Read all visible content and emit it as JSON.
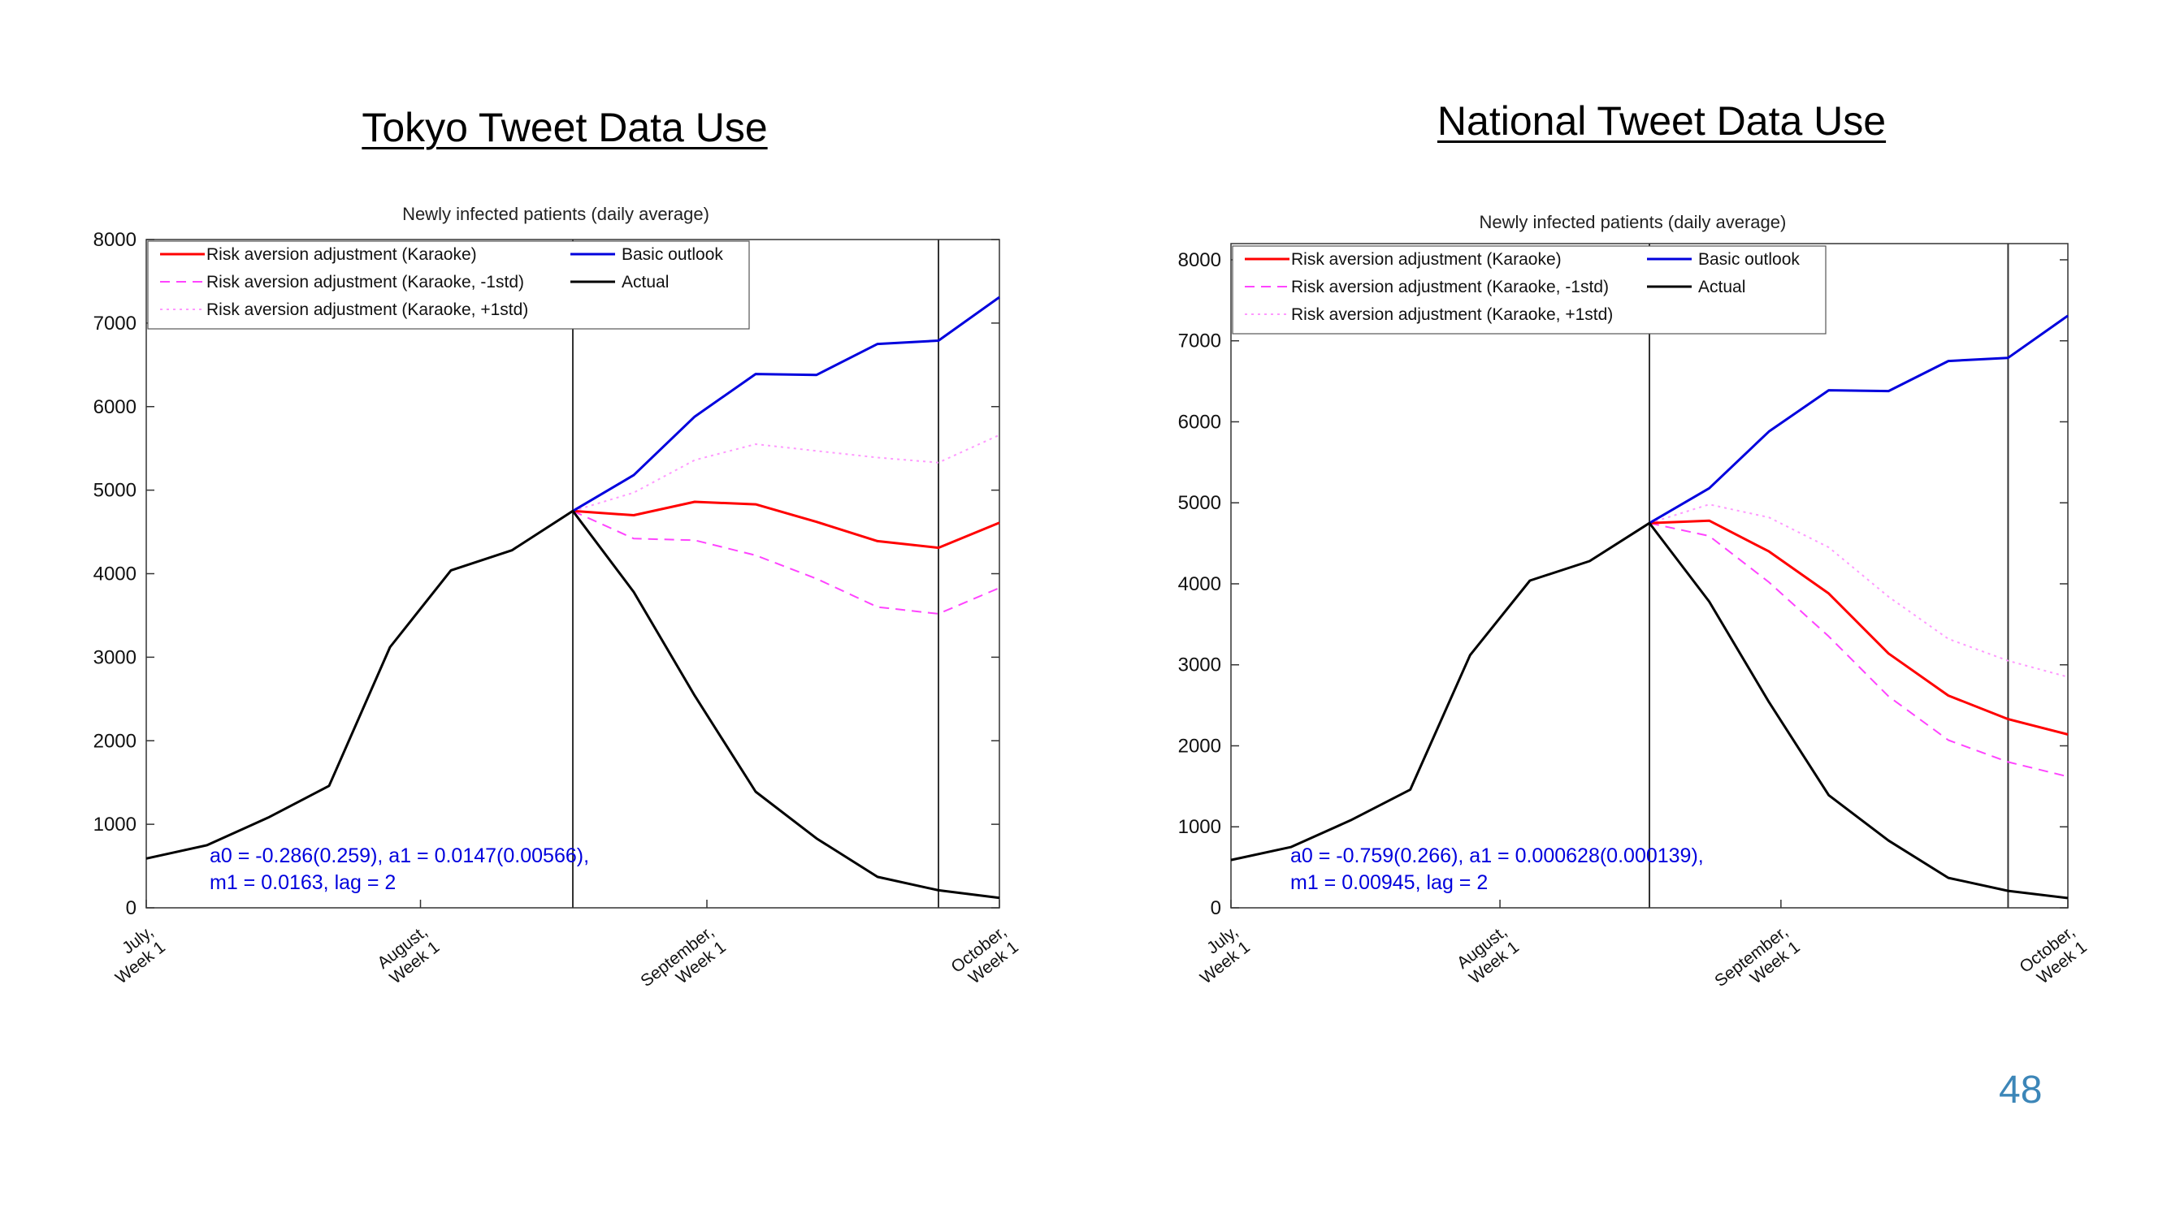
{
  "headings": {
    "left": "Tokyo Tweet Data Use",
    "right": "National Tweet Data Use"
  },
  "page_number": "48",
  "colors": {
    "risk_aversion": "#ff0000",
    "risk_minus": "#ff44ff",
    "risk_plus": "#ff99ff",
    "basic": "#0000dd",
    "actual": "#000000",
    "annotation": "#0000dd"
  },
  "chart_data": [
    {
      "type": "line",
      "title": "Newly infected patients (daily average)",
      "xlabel": "",
      "ylabel": "",
      "ylim": [
        0,
        8000
      ],
      "yticks": [
        0,
        1000,
        2000,
        3000,
        4000,
        5000,
        6000,
        7000,
        8000
      ],
      "xlim": [
        0,
        14
      ],
      "xtick_positions": [
        0,
        4.5,
        9.2,
        14
      ],
      "xtick_labels": [
        [
          "July,",
          "Week 1"
        ],
        [
          "August,",
          "Week 1"
        ],
        [
          "September,",
          "Week 1"
        ],
        [
          "October,",
          "Week 1"
        ]
      ],
      "vlines": [
        7,
        13
      ],
      "grid": false,
      "legend": {
        "placement": "top-left",
        "entries": [
          {
            "label": "Risk aversion adjustment (Karaoke)",
            "series": "risk"
          },
          {
            "label": "Risk aversion adjustment (Karaoke, -1std)",
            "series": "risk_minus"
          },
          {
            "label": "Risk aversion adjustment (Karaoke, +1std)",
            "series": "risk_plus"
          },
          {
            "label": "Basic outlook",
            "series": "basic"
          },
          {
            "label": "Actual",
            "series": "actual"
          }
        ]
      },
      "annotation": [
        "a0 = -0.286(0.259), a1 = 0.0147(0.00566),",
        "m1 = 0.0163, lag = 2"
      ],
      "series": [
        {
          "key": "actual",
          "name": "Actual",
          "style": "solid",
          "x": [
            0,
            1,
            2,
            3,
            4,
            5,
            6,
            7,
            8,
            9,
            10,
            11,
            12,
            13,
            14
          ],
          "values": [
            590,
            750,
            1080,
            1460,
            3120,
            4040,
            4280,
            4750,
            3780,
            2540,
            1390,
            830,
            370,
            210,
            120
          ]
        },
        {
          "key": "basic",
          "name": "Basic outlook",
          "style": "solid",
          "x": [
            7,
            8,
            9,
            10,
            11,
            12,
            13,
            14
          ],
          "values": [
            4750,
            5180,
            5880,
            6390,
            6380,
            6750,
            6790,
            7310
          ]
        },
        {
          "key": "risk",
          "name": "Risk aversion adjustment (Karaoke)",
          "style": "solid",
          "x": [
            7,
            8,
            9,
            10,
            11,
            12,
            13,
            14
          ],
          "values": [
            4750,
            4700,
            4860,
            4830,
            4620,
            4390,
            4310,
            4610
          ]
        },
        {
          "key": "risk_minus",
          "name": "Risk aversion adjustment (Karaoke, -1std)",
          "style": "dashed",
          "x": [
            7,
            8,
            9,
            10,
            11,
            12,
            13,
            14
          ],
          "values": [
            4750,
            4420,
            4400,
            4220,
            3940,
            3600,
            3520,
            3830
          ]
        },
        {
          "key": "risk_plus",
          "name": "Risk aversion adjustment (Karaoke, +1std)",
          "style": "dotted",
          "x": [
            7,
            8,
            9,
            10,
            11,
            12,
            13,
            14
          ],
          "values": [
            4750,
            4970,
            5360,
            5550,
            5470,
            5390,
            5330,
            5660
          ]
        }
      ]
    },
    {
      "type": "line",
      "title": "Newly infected patients (daily average)",
      "xlabel": "",
      "ylabel": "",
      "ylim": [
        0,
        8200
      ],
      "yticks": [
        0,
        1000,
        2000,
        3000,
        4000,
        5000,
        6000,
        7000,
        8000
      ],
      "xlim": [
        0,
        14
      ],
      "xtick_positions": [
        0,
        4.5,
        9.2,
        14
      ],
      "xtick_labels": [
        [
          "July,",
          "Week 1"
        ],
        [
          "August,",
          "Week 1"
        ],
        [
          "September,",
          "Week 1"
        ],
        [
          "October,",
          "Week 1"
        ]
      ],
      "vlines": [
        7,
        13
      ],
      "grid": false,
      "legend": {
        "placement": "top-left",
        "entries": [
          {
            "label": "Risk aversion adjustment (Karaoke)",
            "series": "risk"
          },
          {
            "label": "Risk aversion adjustment (Karaoke, -1std)",
            "series": "risk_minus"
          },
          {
            "label": "Risk aversion adjustment (Karaoke, +1std)",
            "series": "risk_plus"
          },
          {
            "label": "Basic outlook",
            "series": "basic"
          },
          {
            "label": "Actual",
            "series": "actual"
          }
        ]
      },
      "annotation": [
        "a0 = -0.759(0.266), a1 = 0.000628(0.000139),",
        "m1 = 0.00945, lag = 2"
      ],
      "series": [
        {
          "key": "actual",
          "name": "Actual",
          "style": "solid",
          "x": [
            0,
            1,
            2,
            3,
            4,
            5,
            6,
            7,
            8,
            9,
            10,
            11,
            12,
            13,
            14
          ],
          "values": [
            590,
            750,
            1080,
            1460,
            3120,
            4040,
            4280,
            4750,
            3780,
            2540,
            1390,
            830,
            370,
            210,
            120
          ]
        },
        {
          "key": "basic",
          "name": "Basic outlook",
          "style": "solid",
          "x": [
            7,
            8,
            9,
            10,
            11,
            12,
            13,
            14
          ],
          "values": [
            4750,
            5180,
            5880,
            6390,
            6380,
            6750,
            6790,
            7310
          ]
        },
        {
          "key": "risk",
          "name": "Risk aversion adjustment (Karaoke)",
          "style": "solid",
          "x": [
            7,
            8,
            9,
            10,
            11,
            12,
            13,
            14
          ],
          "values": [
            4750,
            4780,
            4400,
            3880,
            3140,
            2620,
            2330,
            2140
          ]
        },
        {
          "key": "risk_minus",
          "name": "Risk aversion adjustment (Karaoke, -1std)",
          "style": "dashed",
          "x": [
            7,
            8,
            9,
            10,
            11,
            12,
            13,
            14
          ],
          "values": [
            4750,
            4590,
            4020,
            3350,
            2610,
            2070,
            1800,
            1620
          ]
        },
        {
          "key": "risk_plus",
          "name": "Risk aversion adjustment (Karaoke, +1std)",
          "style": "dotted",
          "x": [
            7,
            8,
            9,
            10,
            11,
            12,
            13,
            14
          ],
          "values": [
            4750,
            4980,
            4820,
            4450,
            3840,
            3320,
            3050,
            2850
          ]
        }
      ]
    }
  ]
}
